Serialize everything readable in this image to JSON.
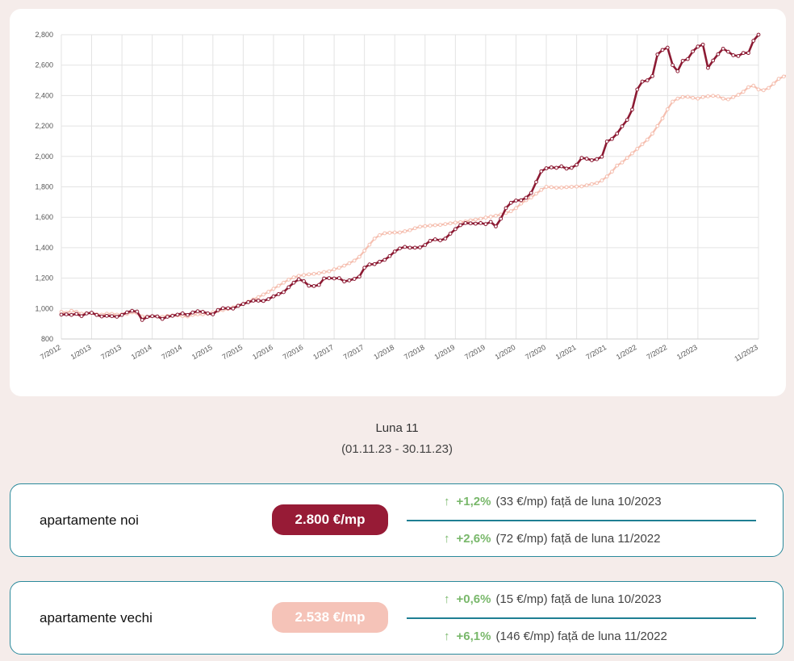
{
  "chart_data": {
    "type": "line",
    "ylim": [
      800,
      2800
    ],
    "y_ticks": [
      "800",
      "1,000",
      "1,200",
      "1,400",
      "1,600",
      "1,800",
      "2,000",
      "2,200",
      "2,400",
      "2,600",
      "2,800"
    ],
    "x_labels": [
      "7/2012",
      "1/2013",
      "7/2013",
      "1/2014",
      "7/2014",
      "1/2015",
      "7/2015",
      "1/2016",
      "7/2016",
      "1/2017",
      "7/2017",
      "1/2018",
      "7/2018",
      "1/2019",
      "7/2019",
      "1/2020",
      "7/2020",
      "1/2021",
      "7/2021",
      "1/2022",
      "7/2022",
      "1/2023",
      "11/2023"
    ],
    "grid": true,
    "legend": "none",
    "series": [
      {
        "color": "#8c1a33",
        "values": [
          960,
          962,
          958,
          965,
          950,
          968,
          972,
          958,
          948,
          952,
          950,
          946,
          958,
          975,
          985,
          980,
          925,
          945,
          950,
          948,
          932,
          946,
          952,
          960,
          968,
          958,
          974,
          982,
          978,
          968,
          962,
          990,
          1002,
          1002,
          1000,
          1018,
          1030,
          1042,
          1052,
          1052,
          1050,
          1062,
          1080,
          1095,
          1108,
          1140,
          1170,
          1192,
          1180,
          1150,
          1148,
          1155,
          1198,
          1200,
          1198,
          1200,
          1178,
          1185,
          1195,
          1210,
          1268,
          1290,
          1292,
          1308,
          1320,
          1345,
          1375,
          1395,
          1405,
          1400,
          1400,
          1402,
          1418,
          1445,
          1455,
          1448,
          1460,
          1492,
          1522,
          1548,
          1562,
          1560,
          1558,
          1562,
          1555,
          1570,
          1540,
          1590,
          1660,
          1695,
          1710,
          1712,
          1728,
          1760,
          1832,
          1902,
          1922,
          1928,
          1925,
          1935,
          1920,
          1925,
          1945,
          1990,
          1985,
          1975,
          1982,
          1998,
          2098,
          2115,
          2150,
          2198,
          2240,
          2308,
          2440,
          2492,
          2500,
          2528,
          2670,
          2700,
          2715,
          2600,
          2560,
          2628,
          2640,
          2690,
          2722,
          2735,
          2582,
          2630,
          2672,
          2708,
          2688,
          2665,
          2660,
          2680,
          2680,
          2760,
          2800
        ]
      },
      {
        "color": "#f5bfb0",
        "values": [
          978,
          972,
          985,
          978,
          966,
          968,
          970,
          962,
          960,
          966,
          965,
          960,
          962,
          965,
          975,
          970,
          948,
          946,
          950,
          948,
          946,
          952,
          955,
          955,
          950,
          948,
          958,
          962,
          962,
          966,
          975,
          985,
          990,
          998,
          1008,
          1020,
          1030,
          1045,
          1060,
          1075,
          1092,
          1110,
          1130,
          1150,
          1170,
          1190,
          1205,
          1215,
          1220,
          1225,
          1228,
          1232,
          1240,
          1245,
          1258,
          1268,
          1282,
          1298,
          1315,
          1340,
          1380,
          1420,
          1460,
          1482,
          1495,
          1498,
          1500,
          1500,
          1508,
          1515,
          1528,
          1538,
          1542,
          1545,
          1548,
          1550,
          1555,
          1560,
          1565,
          1568,
          1572,
          1580,
          1585,
          1590,
          1598,
          1604,
          1610,
          1618,
          1628,
          1640,
          1660,
          1690,
          1712,
          1730,
          1755,
          1780,
          1800,
          1798,
          1794,
          1795,
          1798,
          1800,
          1802,
          1803,
          1810,
          1818,
          1825,
          1842,
          1868,
          1900,
          1940,
          1960,
          1990,
          2020,
          2050,
          2080,
          2110,
          2150,
          2200,
          2250,
          2310,
          2360,
          2380,
          2390,
          2392,
          2385,
          2380,
          2390,
          2395,
          2398,
          2395,
          2380,
          2375,
          2390,
          2405,
          2425,
          2455,
          2465,
          2440,
          2435,
          2450,
          2478,
          2510,
          2525,
          2538
        ]
      }
    ]
  },
  "period": {
    "title": "Luna 11",
    "range": "(01.11.23 - 30.11.23)"
  },
  "cards": {
    "noi": {
      "label": "apartamente noi",
      "price": "2.800 €/mp",
      "rows": [
        {
          "arrow": "↑",
          "pct": "+1,2%",
          "detail": "(33 €/mp) față de luna 10/2023"
        },
        {
          "arrow": "↑",
          "pct": "+2,6%",
          "detail": "(72 €/mp) față de luna 11/2022"
        }
      ]
    },
    "vechi": {
      "label": "apartamente vechi",
      "price": "2.538 €/mp",
      "rows": [
        {
          "arrow": "↑",
          "pct": "+0,6%",
          "detail": "(15 €/mp) față de luna 10/2023"
        },
        {
          "arrow": "↑",
          "pct": "+6,1%",
          "detail": "(146 €/mp) față de luna 11/2022"
        }
      ]
    }
  }
}
